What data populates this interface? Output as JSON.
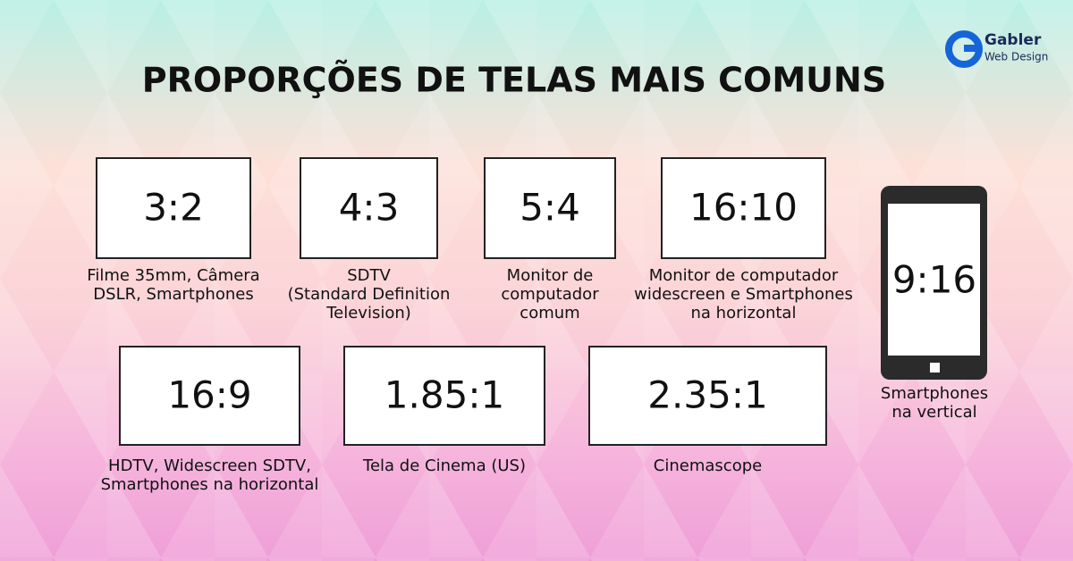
{
  "header": {
    "title": "PROPORÇÕES DE TELAS MAIS COMUNS"
  },
  "logo": {
    "name": "Gabler",
    "tagline": "Web Design"
  },
  "screens": [
    {
      "ratio": "3:2",
      "description": [
        "Filme 35mm, Câmera",
        "DSLR, Smartphones"
      ]
    },
    {
      "ratio": "4:3",
      "description": [
        "SDTV",
        "(Standard Definition",
        "Television)"
      ]
    },
    {
      "ratio": "5:4",
      "description": [
        "Monitor de",
        "computador",
        "comum"
      ]
    },
    {
      "ratio": "16:10",
      "description": [
        "Monitor de computador",
        "widescreen e Smartphones",
        "na horizontal"
      ]
    },
    {
      "ratio": "16:9",
      "description": [
        "HDTV, Widescreen SDTV,",
        "Smartphones na horizontal"
      ]
    },
    {
      "ratio": "1.85:1",
      "description": [
        "Tela de Cinema (US)"
      ]
    },
    {
      "ratio": "2.35:1",
      "description": [
        "Cinemascope"
      ]
    }
  ],
  "phone": {
    "ratio": "9:16",
    "description": [
      "Smartphones",
      "na vertical"
    ]
  }
}
